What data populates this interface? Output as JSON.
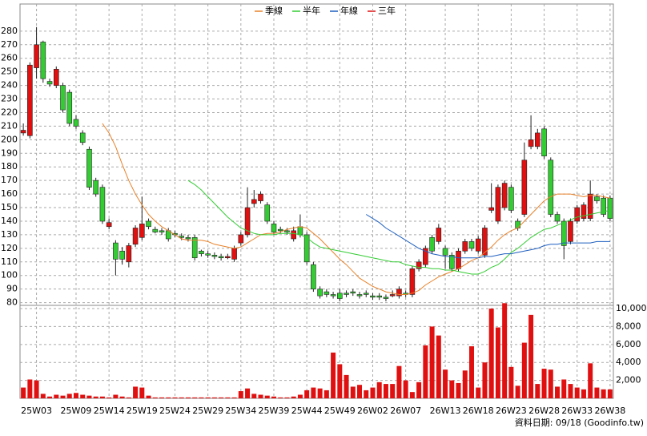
{
  "chart_data": [
    {
      "type": "candlestick",
      "categories": [
        null,
        null,
        "25W03",
        null,
        null,
        null,
        null,
        null,
        "25W09",
        null,
        null,
        null,
        null,
        "25W14",
        null,
        null,
        null,
        null,
        "25W19",
        null,
        null,
        null,
        null,
        "25W24",
        null,
        null,
        null,
        null,
        "25W29",
        null,
        null,
        null,
        null,
        "25W34",
        null,
        null,
        null,
        null,
        "25W39",
        null,
        null,
        null,
        null,
        "25W44",
        null,
        null,
        null,
        null,
        "25W49",
        null,
        null,
        null,
        null,
        "26W02",
        null,
        null,
        null,
        null,
        "26W07",
        null,
        null,
        null,
        null,
        null,
        "26W13",
        null,
        null,
        null,
        null,
        "26W18",
        null,
        null,
        null,
        null,
        "26W23",
        null,
        null,
        null,
        null,
        "26W28",
        null,
        null,
        null,
        null,
        "26W33",
        null,
        null,
        null,
        null,
        "26W38"
      ],
      "open": [
        205,
        203,
        253,
        272,
        243,
        240,
        240,
        235,
        215,
        205,
        193,
        170,
        165,
        136,
        124,
        118,
        110,
        123,
        128,
        140,
        134,
        133,
        133,
        131,
        129,
        128,
        128,
        118,
        116,
        115,
        114,
        113,
        112,
        124,
        130,
        153,
        155,
        152,
        138,
        134,
        133,
        127,
        136,
        130,
        108,
        90,
        88,
        86,
        87,
        87,
        88,
        86,
        87,
        85,
        85,
        84,
        85,
        85,
        87,
        86,
        105,
        108,
        128,
        125,
        120,
        115,
        105,
        118,
        125,
        118,
        115,
        148,
        140,
        150,
        165,
        140,
        145,
        195,
        195,
        208,
        185,
        145,
        140,
        125,
        140,
        142,
        142,
        158,
        157,
        157
      ],
      "high": [
        212,
        257,
        283,
        273,
        245,
        254,
        242,
        237,
        218,
        207,
        195,
        172,
        167,
        142,
        126,
        121,
        124,
        137,
        158,
        142,
        136,
        135,
        135,
        133,
        131,
        130,
        130,
        119,
        118,
        117,
        116,
        116,
        122,
        132,
        165,
        163,
        162,
        154,
        140,
        136,
        135,
        136,
        145,
        132,
        110,
        92,
        90,
        88,
        90,
        89,
        90,
        88,
        89,
        87,
        87,
        86,
        89,
        92,
        89,
        107,
        112,
        122,
        130,
        138,
        122,
        117,
        120,
        127,
        127,
        129,
        137,
        168,
        167,
        170,
        167,
        142,
        198,
        218,
        208,
        210,
        187,
        147,
        142,
        142,
        152,
        154,
        170,
        160,
        159,
        159
      ],
      "low": [
        203,
        201,
        245,
        242,
        239,
        238,
        220,
        210,
        208,
        196,
        163,
        158,
        138,
        134,
        100,
        108,
        106,
        121,
        126,
        134,
        131,
        130,
        125,
        128,
        126,
        125,
        111,
        114,
        113,
        112,
        111,
        112,
        110,
        122,
        128,
        150,
        153,
        138,
        130,
        131,
        130,
        125,
        128,
        108,
        88,
        83,
        84,
        83,
        81,
        84,
        85,
        83,
        84,
        82,
        82,
        81,
        84,
        83,
        84,
        84,
        103,
        106,
        116,
        123,
        105,
        103,
        103,
        116,
        118,
        116,
        113,
        146,
        138,
        148,
        146,
        133,
        143,
        193,
        193,
        186,
        143,
        138,
        112,
        123,
        138,
        140,
        140,
        153,
        143,
        140
      ],
      "close": [
        207,
        255,
        270,
        245,
        241,
        252,
        222,
        212,
        210,
        198,
        165,
        160,
        140,
        139,
        112,
        112,
        122,
        135,
        138,
        136,
        132,
        132,
        127,
        130,
        128,
        127,
        113,
        116,
        115,
        114,
        113,
        114,
        120,
        130,
        150,
        156,
        160,
        140,
        132,
        133,
        132,
        133,
        130,
        110,
        90,
        85,
        86,
        85,
        83,
        86,
        87,
        85,
        86,
        84,
        84,
        83,
        86,
        90,
        86,
        105,
        110,
        120,
        118,
        135,
        115,
        105,
        118,
        125,
        120,
        127,
        135,
        150,
        165,
        168,
        148,
        135,
        185,
        200,
        205,
        188,
        145,
        140,
        122,
        140,
        150,
        152,
        160,
        155,
        145,
        142
      ],
      "up_color": "#e01010",
      "down_color": "#33cc33",
      "lines": [
        {
          "name": "季線",
          "color": "#e8822a",
          "values": [
            null,
            null,
            null,
            null,
            null,
            null,
            null,
            null,
            null,
            null,
            null,
            null,
            212,
            205,
            195,
            182,
            170,
            160,
            152,
            145,
            140,
            136,
            133,
            130,
            127,
            126,
            126,
            126,
            125,
            123,
            122,
            121,
            120,
            121,
            124,
            127,
            130,
            131,
            131,
            132,
            134,
            135,
            136,
            135,
            131,
            127,
            122,
            117,
            112,
            108,
            103,
            98,
            95,
            92,
            90,
            88,
            87,
            86,
            86,
            87,
            89,
            93,
            96,
            99,
            101,
            103,
            105,
            108,
            111,
            113,
            117,
            121,
            126,
            130,
            133,
            135,
            140,
            145,
            150,
            155,
            158,
            160,
            160,
            160,
            159,
            158,
            159,
            159,
            158,
            157
          ]
        },
        {
          "name": "半年",
          "color": "#33cc33",
          "values": [
            null,
            null,
            null,
            null,
            null,
            null,
            null,
            null,
            null,
            null,
            null,
            null,
            null,
            null,
            null,
            null,
            null,
            null,
            null,
            null,
            null,
            null,
            null,
            null,
            null,
            170,
            167,
            163,
            158,
            153,
            148,
            143,
            139,
            135,
            133,
            131,
            130,
            130,
            130,
            131,
            131,
            131,
            130,
            128,
            124,
            121,
            120,
            119,
            118,
            117,
            116,
            115,
            114,
            113,
            112,
            111,
            110,
            110,
            108,
            107,
            106,
            106,
            105,
            105,
            104,
            104,
            103,
            102,
            101,
            101,
            103,
            106,
            108,
            112,
            117,
            120,
            124,
            128,
            131,
            134,
            135,
            137,
            139,
            141,
            143,
            144,
            145,
            146,
            147,
            148
          ]
        },
        {
          "name": "年線",
          "color": "#1f5fbf",
          "values": [
            null,
            null,
            null,
            null,
            null,
            null,
            null,
            null,
            null,
            null,
            null,
            null,
            null,
            null,
            null,
            null,
            null,
            null,
            null,
            null,
            null,
            null,
            null,
            null,
            null,
            null,
            null,
            null,
            null,
            null,
            null,
            null,
            null,
            null,
            null,
            null,
            null,
            null,
            null,
            null,
            null,
            null,
            null,
            null,
            null,
            null,
            null,
            null,
            null,
            null,
            null,
            null,
            145,
            142,
            139,
            135,
            132,
            129,
            126,
            123,
            120,
            118,
            116,
            115,
            114,
            114,
            113,
            113,
            113,
            113,
            114,
            114,
            115,
            116,
            116,
            117,
            118,
            119,
            120,
            122,
            123,
            123,
            124,
            124,
            124,
            124,
            124,
            125,
            125,
            125
          ]
        },
        {
          "name": "三年",
          "color": "#e01010",
          "values": [
            null,
            null,
            null,
            null,
            null,
            null,
            null,
            null,
            null,
            null,
            null,
            null,
            null,
            null,
            null,
            null,
            null,
            null,
            null,
            null,
            null,
            null,
            null,
            null,
            null,
            null,
            null,
            null,
            null,
            null,
            null,
            null,
            null,
            null,
            null,
            null,
            null,
            null,
            null,
            null,
            null,
            null,
            null,
            null,
            null,
            null,
            null,
            null,
            null,
            null,
            null,
            null,
            null,
            null,
            null,
            null,
            null,
            null,
            null,
            null,
            null,
            null,
            null,
            null,
            null,
            null,
            null,
            null,
            null,
            null,
            null,
            null,
            null,
            null,
            null,
            null,
            null,
            null,
            null,
            null,
            null,
            null,
            null,
            null,
            null,
            null,
            null,
            null,
            null,
            null
          ]
        }
      ],
      "ylim": [
        78,
        300
      ],
      "yticks": [
        80,
        90,
        100,
        110,
        120,
        130,
        140,
        150,
        160,
        170,
        180,
        190,
        200,
        210,
        220,
        230,
        240,
        250,
        260,
        270,
        280
      ],
      "grid": true,
      "footnote": "資料日期: 09/18 (Goodinfo.tw)"
    },
    {
      "type": "bar",
      "color": "#e01010",
      "values": [
        1200,
        2100,
        2000,
        500,
        200,
        400,
        300,
        500,
        600,
        400,
        300,
        200,
        200,
        100,
        400,
        200,
        100,
        1300,
        1200,
        300,
        100,
        100,
        100,
        100,
        100,
        100,
        100,
        100,
        100,
        100,
        100,
        100,
        100,
        800,
        1100,
        500,
        400,
        300,
        200,
        100,
        100,
        200,
        400,
        900,
        1200,
        1100,
        900,
        5100,
        3800,
        2600,
        1300,
        1500,
        900,
        1200,
        1800,
        1600,
        1600,
        3600,
        2000,
        700,
        1800,
        5900,
        8000,
        7000,
        3200,
        2000,
        1700,
        3100,
        5800,
        1200,
        4000,
        10000,
        7900,
        10600,
        3500,
        1400,
        6200,
        9300,
        1600,
        3300,
        3200,
        1300,
        2100,
        1600,
        1200,
        1000,
        3900,
        1200,
        1000,
        1000
      ],
      "ylim": [
        0,
        10360
      ],
      "yticks": [
        {
          "value": 2000,
          "label": "2,000"
        },
        {
          "value": 4000,
          "label": "4,000"
        },
        {
          "value": 6000,
          "label": "6,000"
        },
        {
          "value": 8000,
          "label": "8,000"
        },
        {
          "value": 10000,
          "label": "10,000"
        }
      ],
      "grid": true
    }
  ]
}
